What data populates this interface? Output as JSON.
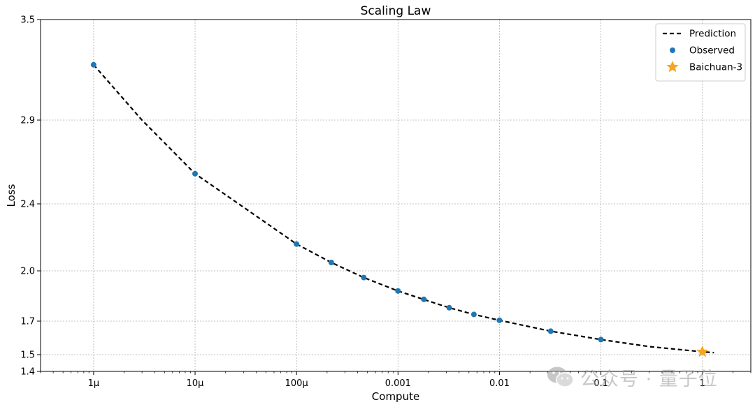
{
  "chart_data": {
    "type": "line",
    "title": "Scaling Law",
    "xlabel": "Compute",
    "ylabel": "Loss",
    "x_scale": "log",
    "xlim": [
      3e-07,
      3.0
    ],
    "ylim": [
      1.4,
      3.5
    ],
    "x_ticks": [
      {
        "value": 1e-06,
        "label": "1μ"
      },
      {
        "value": 1e-05,
        "label": "10μ"
      },
      {
        "value": 0.0001,
        "label": "100μ"
      },
      {
        "value": 0.001,
        "label": "0.001"
      },
      {
        "value": 0.01,
        "label": "0.01"
      },
      {
        "value": 0.1,
        "label": "0.1"
      },
      {
        "value": 1,
        "label": "1"
      }
    ],
    "y_ticks": [
      {
        "value": 3.5,
        "label": "3.5"
      },
      {
        "value": 2.9,
        "label": "2.9"
      },
      {
        "value": 2.4,
        "label": "2.4"
      },
      {
        "value": 2.0,
        "label": "2.0"
      },
      {
        "value": 1.7,
        "label": "1.7"
      },
      {
        "value": 1.5,
        "label": "1.5"
      },
      {
        "value": 1.4,
        "label": "1.4"
      }
    ],
    "grid": true,
    "legend_position": "top-right",
    "series": [
      {
        "name": "Prediction",
        "kind": "line",
        "style": "dashed",
        "color": "#000000",
        "x": [
          1e-06,
          3e-06,
          1e-05,
          3e-05,
          0.0001,
          0.00022,
          0.00046,
          0.001,
          0.002,
          0.0032,
          0.0056,
          0.01,
          0.032,
          0.1,
          0.3,
          1.0,
          1.3
        ],
        "y": [
          3.23,
          2.9,
          2.58,
          2.38,
          2.16,
          2.05,
          1.96,
          1.88,
          1.82,
          1.78,
          1.74,
          1.705,
          1.64,
          1.59,
          1.548,
          1.517,
          1.512
        ]
      },
      {
        "name": "Observed",
        "kind": "scatter",
        "color": "#1f77b4",
        "x": [
          1e-06,
          1e-05,
          0.0001,
          0.00022,
          0.00046,
          0.001,
          0.0018,
          0.0032,
          0.0056,
          0.01,
          0.032,
          0.1
        ],
        "y": [
          3.23,
          2.58,
          2.16,
          2.05,
          1.96,
          1.88,
          1.83,
          1.78,
          1.74,
          1.705,
          1.64,
          1.59
        ]
      },
      {
        "name": "Baichuan-3",
        "kind": "scatter",
        "marker": "star",
        "color": "#f5a623",
        "x": [
          1.0
        ],
        "y": [
          1.517
        ]
      }
    ]
  },
  "watermark": {
    "text": "公众号 · 量子位",
    "icon": "wechat-icon"
  }
}
